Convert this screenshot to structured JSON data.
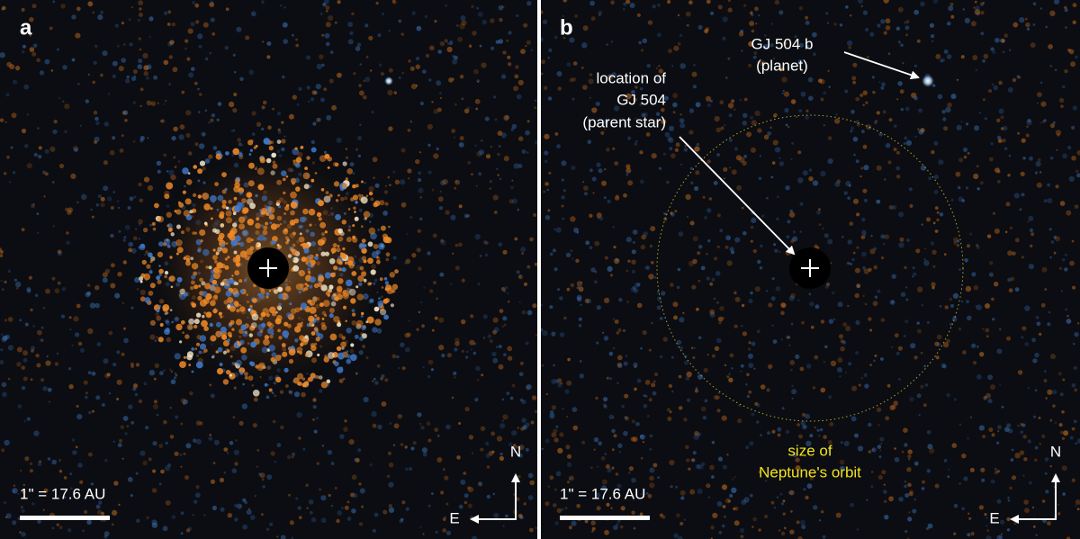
{
  "panels": [
    {
      "label": "a",
      "scale_bar": "1\" = 17.6 AU",
      "compass": {
        "north": "N",
        "east": "E"
      }
    },
    {
      "label": "b",
      "scale_bar": "1\" = 17.6 AU",
      "compass": {
        "north": "N",
        "east": "E"
      },
      "annotations": {
        "planet": [
          "GJ 504 b",
          "(planet)"
        ],
        "star": [
          "location of",
          "GJ 504",
          "(parent star)"
        ],
        "orbit": [
          "size of",
          "Neptune's orbit"
        ]
      }
    }
  ]
}
